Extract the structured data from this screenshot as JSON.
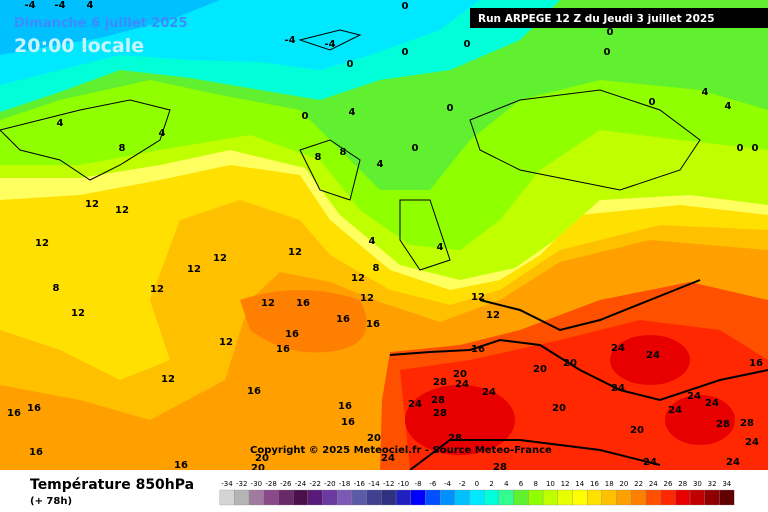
{
  "header": {
    "date": "Dimanche 6 juillet 2025",
    "time": "20:00 locale",
    "run": "Run ARPEGE 12 Z du Jeudi 3 juillet 2025"
  },
  "copyright": "Copyright © 2025 Meteociel.fr - Source Meteo-France",
  "footer": {
    "title": "Température 850hPa",
    "lead": "(+ 78h)"
  },
  "legend": {
    "values": [
      -34,
      -32,
      -30,
      -28,
      -26,
      -24,
      -22,
      -20,
      -18,
      -16,
      -14,
      -12,
      -10,
      -8,
      -6,
      -4,
      -2,
      0,
      2,
      4,
      6,
      8,
      10,
      12,
      14,
      16,
      18,
      20,
      22,
      24,
      26,
      28,
      30,
      32,
      34
    ],
    "colors": [
      "#d4d4d4",
      "#b4b4b4",
      "#a07aa0",
      "#8a4a8a",
      "#6a2a6a",
      "#4a104a",
      "#5a1a7a",
      "#6a3aa0",
      "#7a5ab4",
      "#5a5aa8",
      "#404090",
      "#303080",
      "#2020c0",
      "#0000ff",
      "#0050ff",
      "#0090ff",
      "#00c0ff",
      "#00e8ff",
      "#00ffd8",
      "#30ff90",
      "#60f030",
      "#90ff00",
      "#c0ff00",
      "#e8ff00",
      "#ffff00",
      "#ffe000",
      "#ffc000",
      "#ffa000",
      "#ff8000",
      "#ff5000",
      "#ff2800",
      "#e80000",
      "#c00000",
      "#900000",
      "#600000"
    ]
  },
  "map_labels": [
    0,
    -4,
    -4,
    0,
    0,
    0,
    0,
    0,
    0,
    0,
    4,
    4,
    0,
    0,
    0,
    4,
    0,
    4,
    8,
    8,
    4,
    4,
    8,
    12,
    12,
    12,
    8,
    12,
    12,
    12,
    12,
    12,
    4,
    4,
    8,
    12,
    16,
    12,
    12,
    16,
    16,
    16,
    16,
    12,
    12,
    16,
    12,
    12,
    16,
    20,
    20,
    20,
    24,
    28,
    28,
    24,
    24,
    28,
    24,
    24,
    24,
    24,
    24,
    24,
    20,
    20,
    16,
    24,
    28,
    28,
    24,
    24,
    28,
    28,
    24,
    20,
    20,
    20,
    16,
    16,
    16,
    16,
    16,
    16,
    -4,
    -4,
    4
  ]
}
